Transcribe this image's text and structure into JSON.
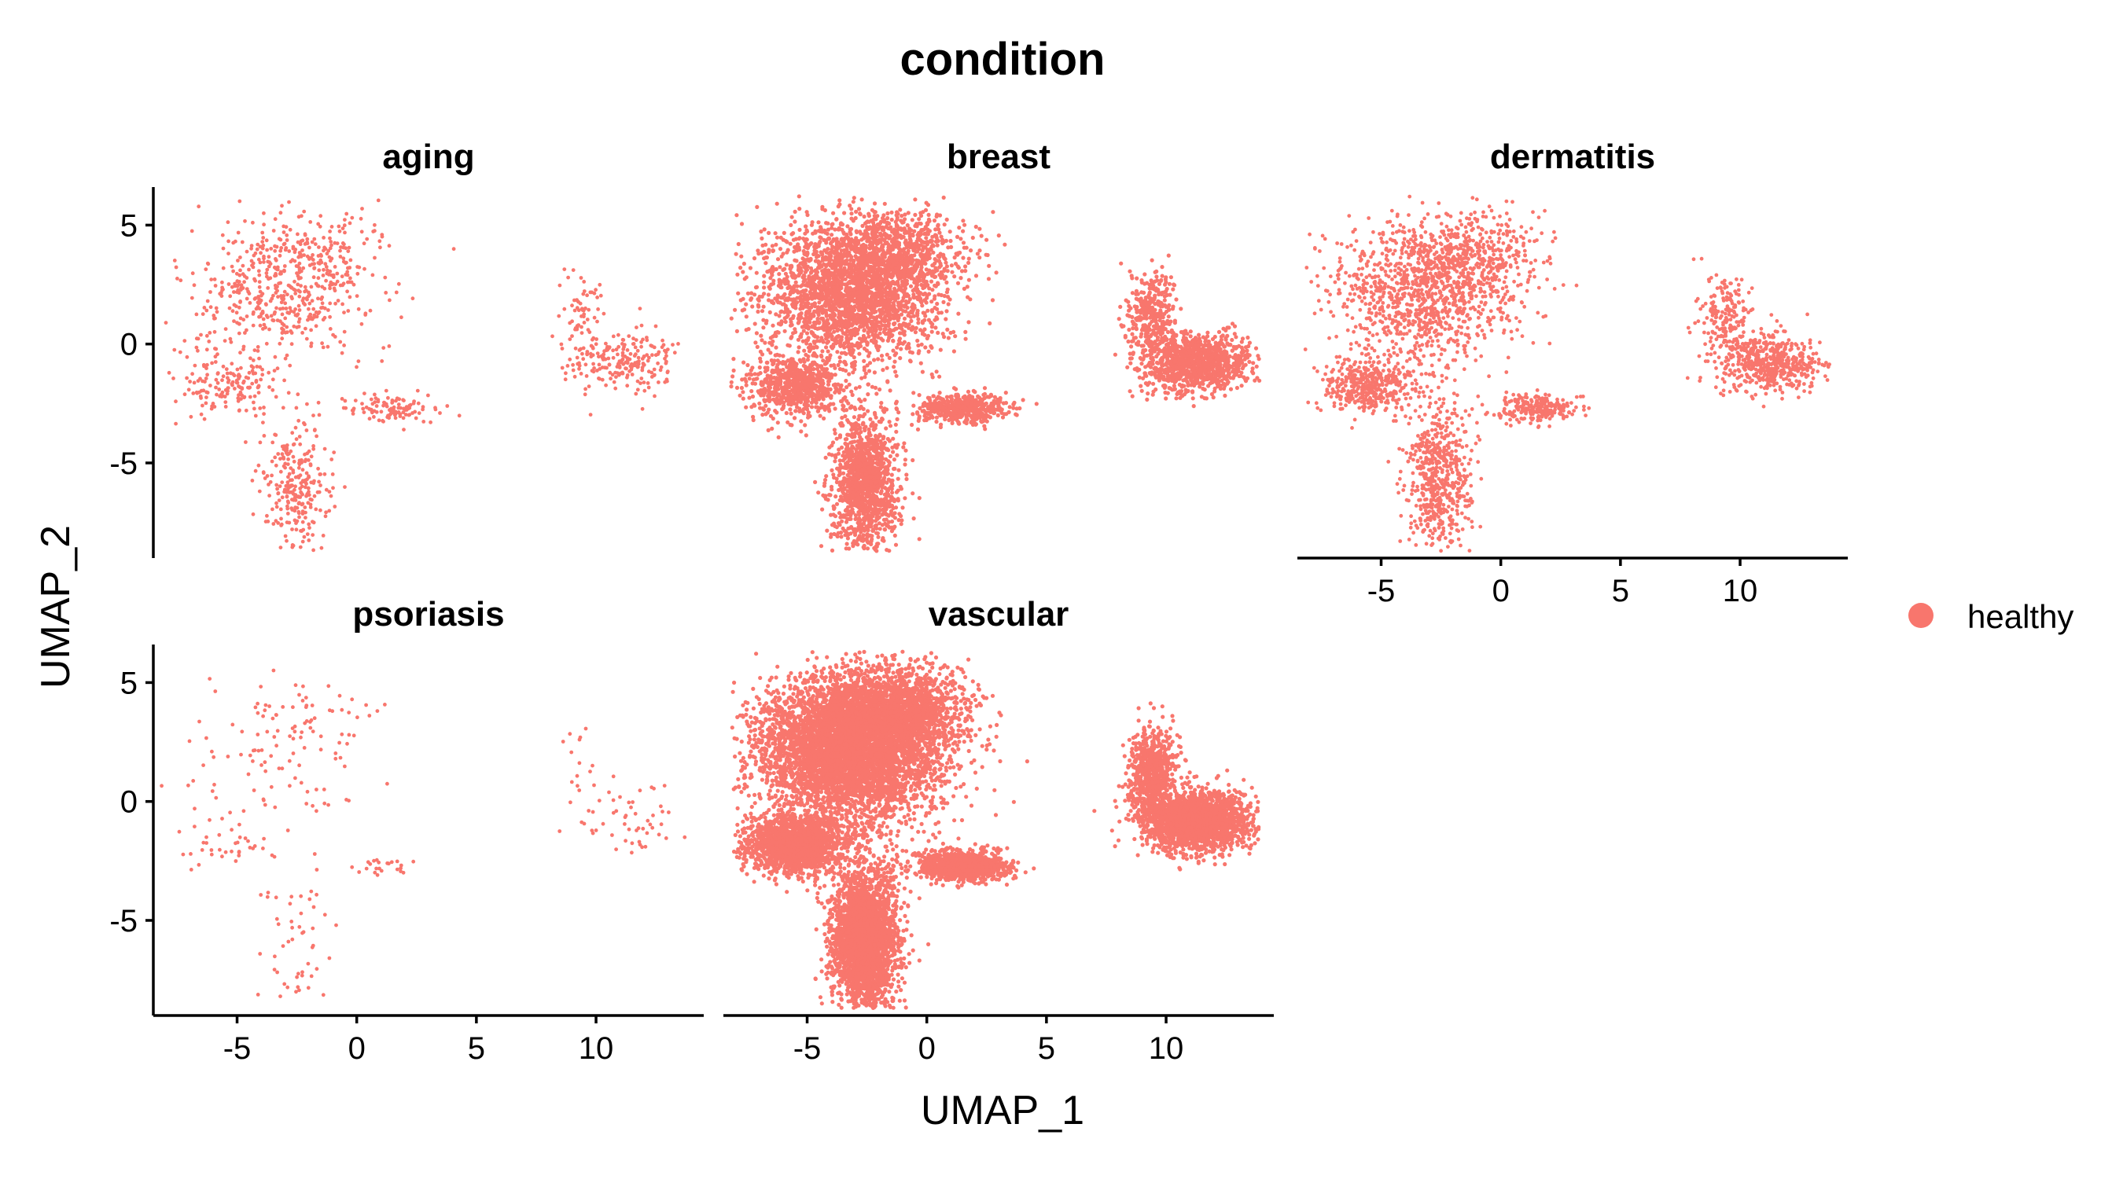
{
  "chart_data": {
    "type": "scatter",
    "title": "condition",
    "xlabel": "UMAP_1",
    "ylabel": "UMAP_2",
    "xlim": [
      -8.5,
      14.5
    ],
    "ylim": [
      -9,
      6.6
    ],
    "x_ticks": [
      -5,
      0,
      5,
      10
    ],
    "x_tick_labels": [
      "-5",
      "0",
      "5",
      "10"
    ],
    "y_ticks": [
      -5,
      0,
      5
    ],
    "y_tick_labels": [
      "-5",
      "0",
      "5"
    ],
    "grid": false,
    "legend_position": "right",
    "color": "#F8766D",
    "series": [
      {
        "name": "healthy",
        "color": "#F8766D"
      }
    ],
    "cluster_regions": [
      {
        "name": "upper-left",
        "cx": -3.2,
        "cy": 2.2,
        "sx": 1.9,
        "sy": 1.5
      },
      {
        "name": "upper-ridge",
        "cx": -1.2,
        "cy": 3.8,
        "sx": 1.4,
        "sy": 0.9
      },
      {
        "name": "lower-tail",
        "cx": -2.6,
        "cy": -5.8,
        "sx": 0.7,
        "sy": 1.5
      },
      {
        "name": "left-arm",
        "cx": -5.5,
        "cy": -1.8,
        "sx": 1.0,
        "sy": 0.6
      },
      {
        "name": "middle-island",
        "cx": 1.5,
        "cy": -2.7,
        "sx": 0.9,
        "sy": 0.3
      },
      {
        "name": "right-island",
        "cx": 11.3,
        "cy": -0.8,
        "sx": 1.1,
        "sy": 0.6
      },
      {
        "name": "right-island-top",
        "cx": 9.4,
        "cy": 1.2,
        "sx": 0.5,
        "sy": 0.9
      }
    ],
    "panels": [
      {
        "title": "aging",
        "points": 1400,
        "has_x_axis": false,
        "has_y_axis": true
      },
      {
        "title": "breast",
        "points": 7000,
        "has_x_axis": false,
        "has_y_axis": false
      },
      {
        "title": "dermatitis",
        "points": 3400,
        "has_x_axis": true,
        "has_y_axis": false
      },
      {
        "title": "psoriasis",
        "points": 300,
        "has_x_axis": true,
        "has_y_axis": true
      },
      {
        "title": "vascular",
        "points": 15000,
        "has_x_axis": true,
        "has_y_axis": false
      }
    ]
  }
}
